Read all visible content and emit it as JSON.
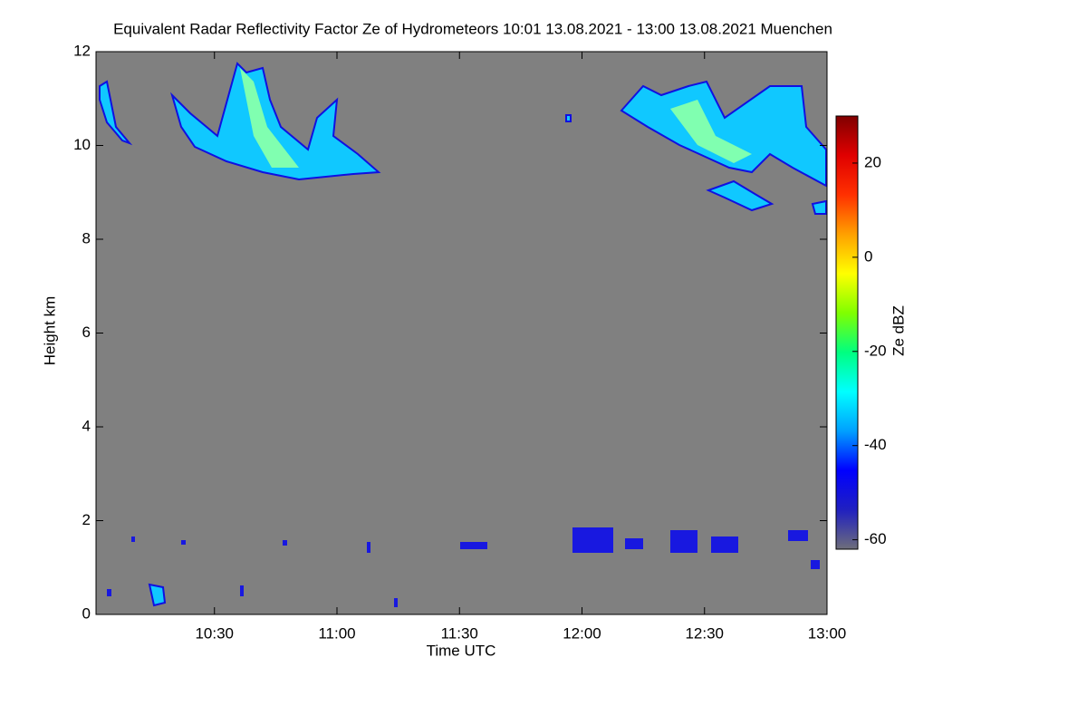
{
  "chart_data": {
    "type": "heatmap",
    "title": "Equivalent Radar Reflectivity Factor Ze of Hydrometeors   10:01 13.08.2021 - 13:00 13.08.2021 Muenchen",
    "x_label": "Time UTC",
    "y_label": "Height km",
    "colorbar_label": "Ze dBZ",
    "background": "#808080",
    "xlim": [
      601,
      780
    ],
    "xticks": [
      {
        "value": 630,
        "label": "10:30"
      },
      {
        "value": 660,
        "label": "11:00"
      },
      {
        "value": 690,
        "label": "11:30"
      },
      {
        "value": 720,
        "label": "12:00"
      },
      {
        "value": 750,
        "label": "12:30"
      },
      {
        "value": 780,
        "label": "13:00"
      }
    ],
    "ylim": [
      0,
      12
    ],
    "yticks": [
      0,
      2,
      4,
      6,
      8,
      10,
      12
    ],
    "clim": [
      -62,
      30
    ],
    "cticks": [
      -60,
      -40,
      -20,
      0,
      20
    ],
    "colormap": [
      "#6e6e7a",
      "#2020c0",
      "#0000ff",
      "#00a0ff",
      "#00ffff",
      "#00ff80",
      "#80ff00",
      "#ffff00",
      "#ffa000",
      "#ff3000",
      "#e00000",
      "#800000"
    ]
  }
}
